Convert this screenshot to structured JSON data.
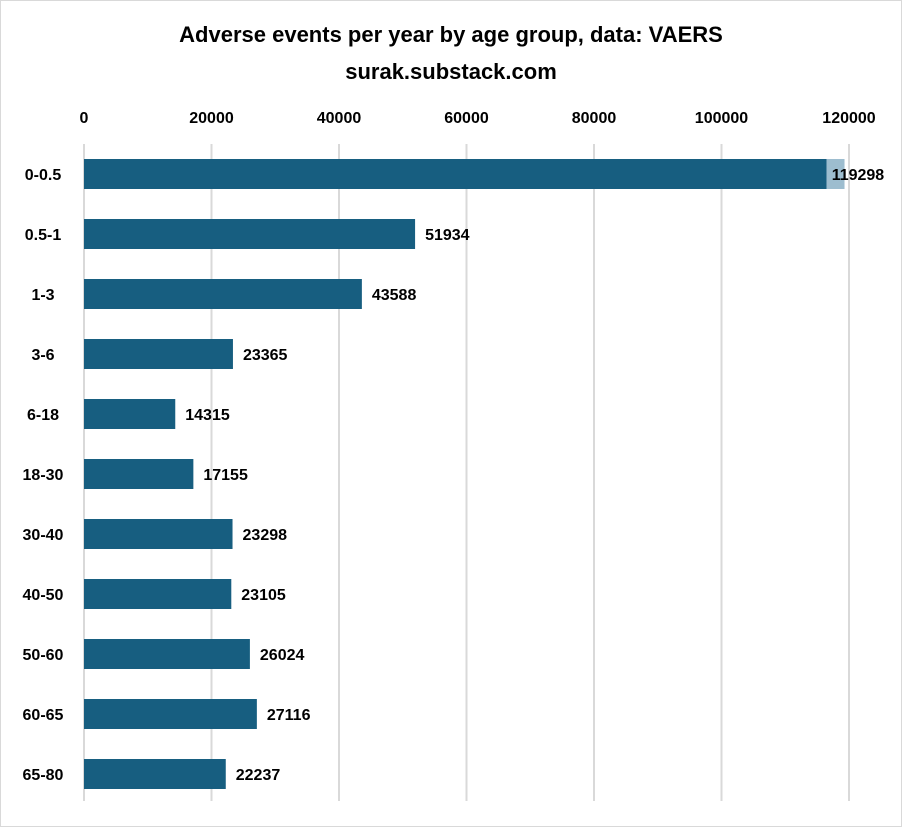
{
  "chart_data": {
    "type": "bar",
    "orientation": "horizontal",
    "title": "Adverse events per year by age group, data: VAERS",
    "subtitle": "surak.substack.com",
    "categories": [
      "0-0.5",
      "0.5-1",
      "1-3",
      "3-6",
      "6-18",
      "18-30",
      "30-40",
      "40-50",
      "50-60",
      "60-65",
      "65-80"
    ],
    "values": [
      119298,
      51934,
      43588,
      23365,
      14315,
      17155,
      23298,
      23105,
      26024,
      27116,
      22237
    ],
    "value_labels": [
      "119298",
      "51934",
      "43588",
      "23365",
      "14315",
      "17155",
      "23298",
      "23105",
      "26024",
      "27116",
      "22237"
    ],
    "x_ticks": [
      "0",
      "20000",
      "40000",
      "60000",
      "80000",
      "100000",
      "120000"
    ],
    "x_tick_values": [
      0,
      20000,
      40000,
      60000,
      80000,
      100000,
      120000
    ],
    "xlim": [
      0,
      120000
    ],
    "x_axis_position": "top",
    "grid": "vertical",
    "legend": "none",
    "bar_color": "#175e80",
    "bar_cap_color": "#9dbdcf",
    "grid_color": "#d9d9d9"
  }
}
